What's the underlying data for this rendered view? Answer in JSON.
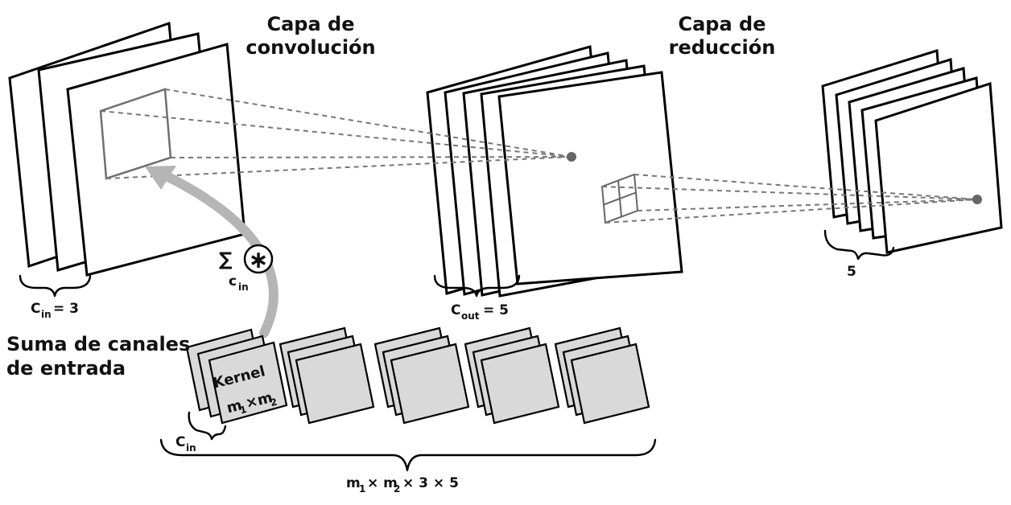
{
  "titles": {
    "conv_line1": "Capa de",
    "conv_line2": "convolución",
    "pool_line1": "Capa de",
    "pool_line2": "reducción",
    "sum_line1": "Suma de canales",
    "sum_line2": "de entrada"
  },
  "labels": {
    "cin_main": "C",
    "cin_sub": "in",
    "cin_value": "= 3",
    "cout_main": "C",
    "cout_sub": "out",
    "cout_value": "= 5",
    "pool_count": "5",
    "sum_symbol": "∑",
    "conv_symbol": "∗",
    "op_c": "c",
    "op_sub": "in",
    "kernel_word": "Kernel",
    "kernel_m1": "m",
    "kernel_sub1": "1",
    "kernel_times": "×m",
    "kernel_sub2": "2",
    "kcin_main": "C",
    "kcin_sub": "in",
    "total_m1": "m",
    "total_sub1": "1",
    "total_times_m2": "× m",
    "total_sub2": "2",
    "total_rest": "× 3 × 5"
  },
  "counts": {
    "input_channels": 3,
    "output_channels": 5,
    "pooled_maps": 5,
    "kernel_groups": 5
  },
  "colors": {
    "kernel_fill": "#d9d9d9",
    "arrow": "#b5b5b5",
    "dashed": "#777777"
  }
}
